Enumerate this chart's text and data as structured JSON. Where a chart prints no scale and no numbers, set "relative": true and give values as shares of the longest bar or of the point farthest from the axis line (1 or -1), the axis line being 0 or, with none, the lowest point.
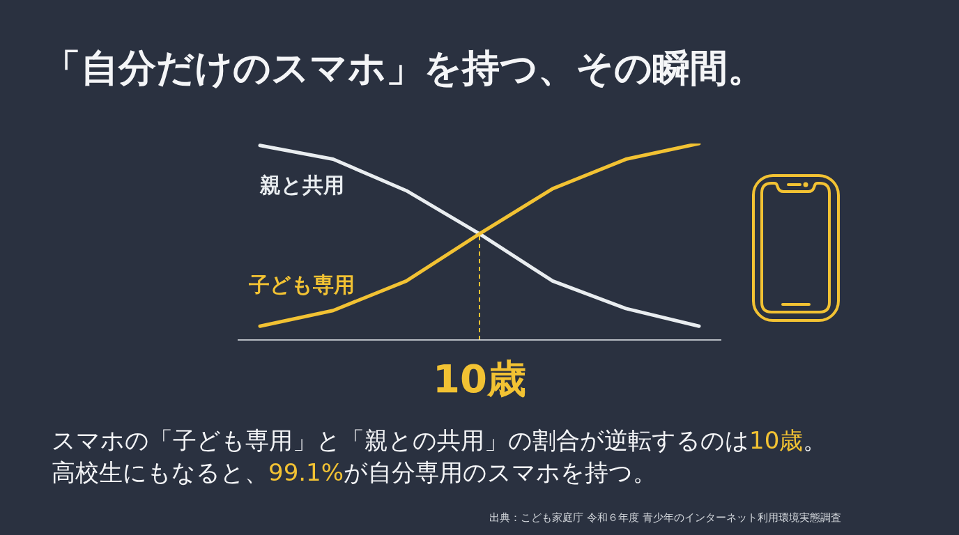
{
  "chart_data": {
    "type": "line",
    "title": "「自分だけのスマホ」を持つ、その瞬間。",
    "categories": [
      null,
      null,
      null,
      null,
      null,
      null,
      null
    ],
    "relative": true,
    "series": [
      {
        "name": "親と共用",
        "color": "#e9edf0",
        "values": [
          0.99,
          0.92,
          0.76,
          0.54,
          0.3,
          0.16,
          0.07
        ]
      },
      {
        "name": "子ども専用",
        "color": "#f2c233",
        "values": [
          0.07,
          0.15,
          0.3,
          0.54,
          0.77,
          0.92,
          1
        ]
      }
    ],
    "ref_lines": [
      {
        "axis": "x",
        "value": "10歳",
        "color": "#f2c233",
        "line_style": "dashed"
      }
    ],
    "annotations": [
      "スマホの「子ども専用」と「親との共用」の割合が逆転するのは10歳。",
      "高校生にもなると、99.1%が自分専用のスマホを持つ。",
      "出典：こども家庭庁 令和６年度 青少年のインターネット利用環境実態調査"
    ]
  }
}
